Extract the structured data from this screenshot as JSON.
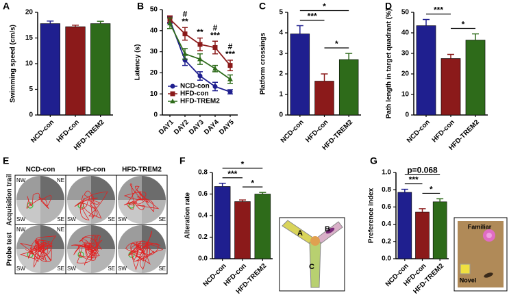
{
  "chart_data": [
    {
      "panel": "A",
      "type": "bar",
      "ylabel": "Swimming speed (cm/s)",
      "categories": [
        "NCD-con",
        "HFD-con",
        "HFD-TREM2"
      ],
      "values": [
        17.8,
        17.2,
        17.8
      ],
      "errors": [
        0.5,
        0.3,
        0.45
      ],
      "colors": [
        "#1f1f8f",
        "#8b1a1a",
        "#2e6b1a"
      ],
      "ylim": [
        0,
        20
      ],
      "yticks": [
        0,
        5,
        10,
        15,
        20
      ],
      "brackets": []
    },
    {
      "panel": "B",
      "type": "line",
      "ylabel": "Latency (s)",
      "categories": [
        "DAY1",
        "DAY2",
        "DAY3",
        "DAY4",
        "DAY5"
      ],
      "series": [
        {
          "name": "NCD-con",
          "color": "#1f1f8f",
          "marker": "circle",
          "values": [
            45,
            26,
            18.5,
            13.5,
            11
          ],
          "errors": [
            1.5,
            2.5,
            2,
            2,
            1
          ]
        },
        {
          "name": "HFD-con",
          "color": "#8b1a1a",
          "marker": "square",
          "values": [
            45.5,
            38.5,
            33.5,
            32,
            23.5
          ],
          "errors": [
            1.5,
            3,
            3,
            3,
            2.5
          ]
        },
        {
          "name": "HFD-TREM2",
          "color": "#2e6b1a",
          "marker": "triangle",
          "values": [
            43.5,
            29,
            26.5,
            22,
            17
          ],
          "errors": [
            2.5,
            2.5,
            2.5,
            1.5,
            2
          ]
        }
      ],
      "ylim": [
        0,
        50
      ],
      "yticks": [
        0,
        10,
        20,
        30,
        40,
        50
      ],
      "legend": "lower left",
      "annotations": [
        {
          "index": 1,
          "text": [
            "#",
            "**"
          ]
        },
        {
          "index": 2,
          "text": [
            "**"
          ]
        },
        {
          "index": 3,
          "text": [
            "#",
            "***"
          ]
        },
        {
          "index": 4,
          "text": [
            "#",
            "***"
          ]
        }
      ]
    },
    {
      "panel": "C",
      "type": "bar",
      "ylabel": "Platform crossings",
      "categories": [
        "NCD-con",
        "HFD-con",
        "HFD-TREM2"
      ],
      "values": [
        3.95,
        1.65,
        2.7
      ],
      "errors": [
        0.4,
        0.35,
        0.3
      ],
      "colors": [
        "#1f1f8f",
        "#8b1a1a",
        "#2e6b1a"
      ],
      "ylim": [
        0,
        5
      ],
      "yticks": [
        0,
        1,
        2,
        3,
        4,
        5
      ],
      "brackets": [
        {
          "pair": [
            0,
            1
          ],
          "text": "***"
        },
        {
          "pair": [
            1,
            2
          ],
          "text": "*"
        },
        {
          "pair": [
            0,
            2
          ],
          "text": "*"
        }
      ]
    },
    {
      "panel": "D",
      "type": "bar",
      "ylabel": "Path length in target quadrant (%)",
      "categories": [
        "NCD-con",
        "HFD-con",
        "HFD-TREM2"
      ],
      "values": [
        43.5,
        27.5,
        36.5
      ],
      "errors": [
        3,
        2,
        3
      ],
      "colors": [
        "#1f1f8f",
        "#8b1a1a",
        "#2e6b1a"
      ],
      "ylim": [
        0,
        50
      ],
      "yticks": [
        0,
        10,
        20,
        30,
        40,
        50
      ],
      "brackets": [
        {
          "pair": [
            0,
            1
          ],
          "text": "***"
        },
        {
          "pair": [
            1,
            2
          ],
          "text": "*"
        }
      ]
    },
    {
      "panel": "F",
      "type": "bar",
      "ylabel": "Alteration rate",
      "categories": [
        "NCD-con",
        "HFD-con",
        "HFD-TREM2"
      ],
      "values": [
        0.67,
        0.53,
        0.6
      ],
      "errors": [
        0.03,
        0.015,
        0.015
      ],
      "colors": [
        "#1f1f8f",
        "#8b1a1a",
        "#2e6b1a"
      ],
      "ylim": [
        0,
        0.8
      ],
      "yticks": [
        {
          "value": 0,
          "label": "0.0"
        },
        0.2,
        0.4,
        0.6,
        0.8
      ],
      "brackets": [
        {
          "pair": [
            0,
            1
          ],
          "text": "***"
        },
        {
          "pair": [
            1,
            2
          ],
          "text": "*"
        },
        {
          "pair": [
            0,
            2
          ],
          "text": "*"
        }
      ],
      "inset_labels": [
        "A",
        "B",
        "C"
      ]
    },
    {
      "panel": "G",
      "type": "bar",
      "ylabel": "Preference index",
      "categories": [
        "NCD-con",
        "HFD-con",
        "HFD-TREM2"
      ],
      "values": [
        0.77,
        0.54,
        0.66
      ],
      "errors": [
        0.035,
        0.04,
        0.035
      ],
      "colors": [
        "#1f1f8f",
        "#8b1a1a",
        "#2e6b1a"
      ],
      "ylim": [
        0,
        1
      ],
      "yticks": [
        {
          "value": 0,
          "label": "0.0"
        },
        0.2,
        0.4,
        0.6,
        0.8,
        {
          "value": 1,
          "label": "1.0"
        }
      ],
      "brackets": [
        {
          "pair": [
            0,
            1
          ],
          "text": "***"
        },
        {
          "pair": [
            1,
            2
          ],
          "text": "*"
        },
        {
          "pair": [
            0,
            2
          ],
          "text": "p=0.068"
        }
      ],
      "inset_labels": [
        "Familiar",
        "Novel"
      ]
    }
  ],
  "panel_e": {
    "panel": "E",
    "columns": [
      "NCD-con",
      "HFD-con",
      "HFD-TREM2"
    ],
    "rows": [
      "Acquisition trail",
      "Probe test"
    ],
    "quadrants": [
      "NW",
      "NE",
      "SW",
      "SE"
    ]
  }
}
